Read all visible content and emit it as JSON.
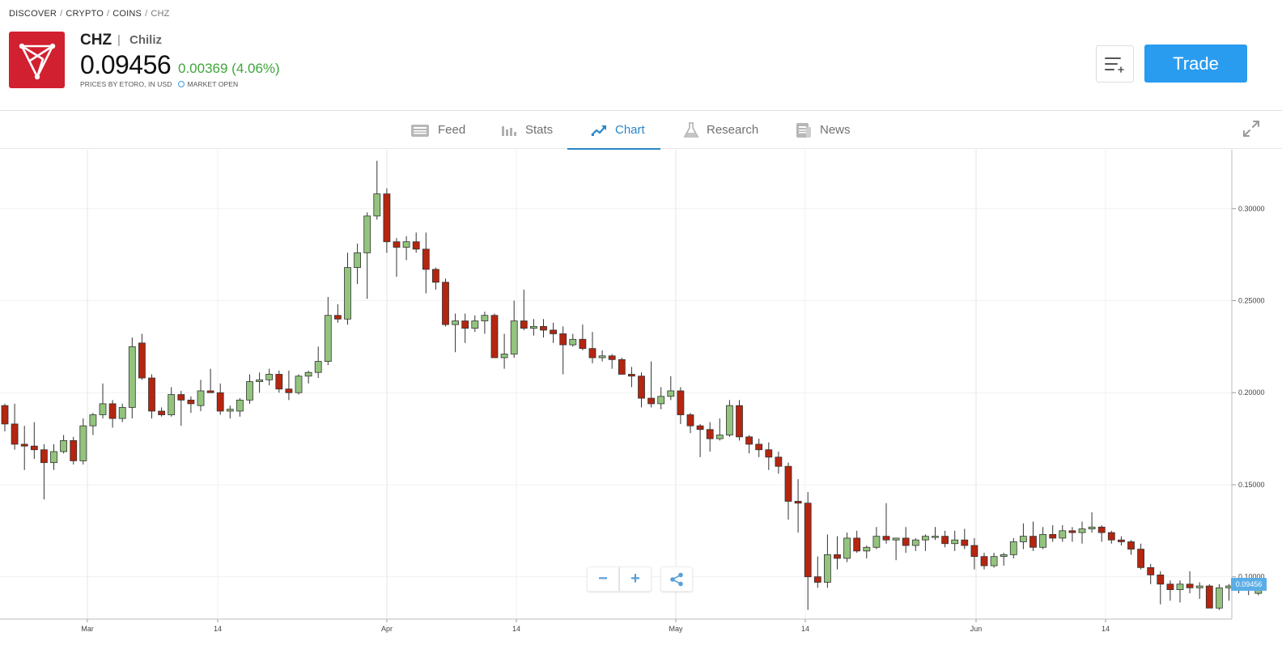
{
  "breadcrumb": {
    "items": [
      "DISCOVER",
      "CRYPTO",
      "COINS"
    ],
    "current": "CHZ",
    "separator": "/"
  },
  "instrument": {
    "symbol": "CHZ",
    "separator": "|",
    "name": "Chiliz",
    "price": "0.09456",
    "change": "0.00369 (4.06%)",
    "prices_by": "PRICES BY ETORO, IN USD",
    "market_status": "MARKET OPEN",
    "brand_color": "#d1202f",
    "change_color": "#3fa53a"
  },
  "actions": {
    "watchlist_icon": "add-to-watchlist-icon",
    "trade_label": "Trade",
    "trade_color": "#2a9cf0"
  },
  "tabs": [
    {
      "label": "Feed",
      "icon": "feed-icon",
      "active": false
    },
    {
      "label": "Stats",
      "icon": "stats-icon",
      "active": false
    },
    {
      "label": "Chart",
      "icon": "chart-icon",
      "active": true
    },
    {
      "label": "Research",
      "icon": "research-icon",
      "active": false
    },
    {
      "label": "News",
      "icon": "news-icon",
      "active": false
    }
  ],
  "chart_controls": {
    "zoom_out": "−",
    "zoom_in": "+",
    "share_icon": "share-icon",
    "expand_icon": "expand-icon"
  },
  "chart_data": {
    "type": "candlestick",
    "x_labels": [
      "Mar",
      "14",
      "Apr",
      "14",
      "May",
      "14",
      "Jun",
      "14"
    ],
    "y_ticks": [
      "0.30000",
      "0.25000",
      "0.20000",
      "0.15000",
      "0.10000"
    ],
    "ylim": [
      0.077,
      0.332
    ],
    "last_price_label": "0.09456",
    "up_color": "#93c47d",
    "down_color": "#b5250f",
    "grid": true,
    "candles": [
      [
        0.193,
        0.194,
        0.179,
        0.183
      ],
      [
        0.183,
        0.194,
        0.169,
        0.172
      ],
      [
        0.172,
        0.182,
        0.158,
        0.171
      ],
      [
        0.171,
        0.184,
        0.164,
        0.169
      ],
      [
        0.169,
        0.172,
        0.142,
        0.162
      ],
      [
        0.162,
        0.172,
        0.158,
        0.168
      ],
      [
        0.168,
        0.177,
        0.167,
        0.174
      ],
      [
        0.174,
        0.176,
        0.161,
        0.163
      ],
      [
        0.163,
        0.186,
        0.161,
        0.182
      ],
      [
        0.182,
        0.189,
        0.177,
        0.188
      ],
      [
        0.188,
        0.205,
        0.186,
        0.194
      ],
      [
        0.194,
        0.196,
        0.181,
        0.186
      ],
      [
        0.186,
        0.194,
        0.184,
        0.192
      ],
      [
        0.192,
        0.23,
        0.186,
        0.225
      ],
      [
        0.227,
        0.232,
        0.207,
        0.208
      ],
      [
        0.208,
        0.21,
        0.186,
        0.19
      ],
      [
        0.19,
        0.192,
        0.187,
        0.188
      ],
      [
        0.188,
        0.203,
        0.187,
        0.199
      ],
      [
        0.199,
        0.201,
        0.182,
        0.196
      ],
      [
        0.196,
        0.198,
        0.189,
        0.194
      ],
      [
        0.193,
        0.207,
        0.19,
        0.201
      ],
      [
        0.201,
        0.213,
        0.2,
        0.2
      ],
      [
        0.2,
        0.205,
        0.188,
        0.19
      ],
      [
        0.19,
        0.193,
        0.186,
        0.191
      ],
      [
        0.19,
        0.197,
        0.187,
        0.196
      ],
      [
        0.196,
        0.21,
        0.194,
        0.206
      ],
      [
        0.206,
        0.211,
        0.2,
        0.207
      ],
      [
        0.207,
        0.213,
        0.204,
        0.21
      ],
      [
        0.21,
        0.212,
        0.2,
        0.202
      ],
      [
        0.202,
        0.212,
        0.196,
        0.2
      ],
      [
        0.2,
        0.21,
        0.199,
        0.209
      ],
      [
        0.209,
        0.212,
        0.205,
        0.211
      ],
      [
        0.211,
        0.225,
        0.208,
        0.217
      ],
      [
        0.217,
        0.252,
        0.215,
        0.242
      ],
      [
        0.242,
        0.248,
        0.238,
        0.24
      ],
      [
        0.24,
        0.276,
        0.237,
        0.268
      ],
      [
        0.268,
        0.281,
        0.259,
        0.276
      ],
      [
        0.276,
        0.298,
        0.251,
        0.296
      ],
      [
        0.296,
        0.326,
        0.294,
        0.308
      ],
      [
        0.308,
        0.311,
        0.276,
        0.282
      ],
      [
        0.282,
        0.284,
        0.263,
        0.279
      ],
      [
        0.279,
        0.285,
        0.272,
        0.282
      ],
      [
        0.282,
        0.287,
        0.276,
        0.278
      ],
      [
        0.278,
        0.287,
        0.254,
        0.267
      ],
      [
        0.267,
        0.268,
        0.256,
        0.26
      ],
      [
        0.26,
        0.262,
        0.236,
        0.237
      ],
      [
        0.237,
        0.243,
        0.222,
        0.239
      ],
      [
        0.239,
        0.243,
        0.227,
        0.235
      ],
      [
        0.235,
        0.242,
        0.233,
        0.239
      ],
      [
        0.239,
        0.244,
        0.232,
        0.242
      ],
      [
        0.242,
        0.243,
        0.219,
        0.219
      ],
      [
        0.219,
        0.232,
        0.213,
        0.221
      ],
      [
        0.221,
        0.25,
        0.219,
        0.239
      ],
      [
        0.239,
        0.256,
        0.234,
        0.235
      ],
      [
        0.235,
        0.24,
        0.231,
        0.236
      ],
      [
        0.236,
        0.24,
        0.23,
        0.234
      ],
      [
        0.234,
        0.238,
        0.227,
        0.232
      ],
      [
        0.232,
        0.236,
        0.21,
        0.226
      ],
      [
        0.226,
        0.232,
        0.225,
        0.229
      ],
      [
        0.229,
        0.237,
        0.223,
        0.224
      ],
      [
        0.224,
        0.233,
        0.216,
        0.219
      ],
      [
        0.219,
        0.223,
        0.217,
        0.22
      ],
      [
        0.22,
        0.221,
        0.213,
        0.218
      ],
      [
        0.218,
        0.219,
        0.211,
        0.21
      ],
      [
        0.21,
        0.214,
        0.203,
        0.209
      ],
      [
        0.209,
        0.211,
        0.192,
        0.197
      ],
      [
        0.197,
        0.217,
        0.192,
        0.194
      ],
      [
        0.194,
        0.203,
        0.191,
        0.198
      ],
      [
        0.198,
        0.209,
        0.196,
        0.201
      ],
      [
        0.201,
        0.203,
        0.183,
        0.188
      ],
      [
        0.188,
        0.189,
        0.178,
        0.182
      ],
      [
        0.182,
        0.183,
        0.165,
        0.18
      ],
      [
        0.18,
        0.184,
        0.168,
        0.175
      ],
      [
        0.175,
        0.186,
        0.174,
        0.177
      ],
      [
        0.177,
        0.196,
        0.176,
        0.193
      ],
      [
        0.193,
        0.196,
        0.174,
        0.176
      ],
      [
        0.176,
        0.177,
        0.167,
        0.172
      ],
      [
        0.172,
        0.175,
        0.165,
        0.169
      ],
      [
        0.169,
        0.173,
        0.158,
        0.165
      ],
      [
        0.165,
        0.168,
        0.156,
        0.16
      ],
      [
        0.16,
        0.162,
        0.131,
        0.141
      ],
      [
        0.141,
        0.153,
        0.124,
        0.14
      ],
      [
        0.14,
        0.146,
        0.082,
        0.1
      ],
      [
        0.1,
        0.111,
        0.094,
        0.097
      ],
      [
        0.097,
        0.123,
        0.094,
        0.112
      ],
      [
        0.112,
        0.122,
        0.104,
        0.11
      ],
      [
        0.11,
        0.124,
        0.108,
        0.121
      ],
      [
        0.121,
        0.125,
        0.113,
        0.114
      ],
      [
        0.114,
        0.117,
        0.11,
        0.116
      ],
      [
        0.116,
        0.127,
        0.115,
        0.122
      ],
      [
        0.122,
        0.14,
        0.118,
        0.12
      ],
      [
        0.12,
        0.121,
        0.109,
        0.121
      ],
      [
        0.121,
        0.127,
        0.113,
        0.117
      ],
      [
        0.117,
        0.121,
        0.114,
        0.12
      ],
      [
        0.12,
        0.123,
        0.114,
        0.122
      ],
      [
        0.122,
        0.127,
        0.12,
        0.122
      ],
      [
        0.122,
        0.125,
        0.116,
        0.118
      ],
      [
        0.118,
        0.125,
        0.114,
        0.12
      ],
      [
        0.12,
        0.126,
        0.115,
        0.117
      ],
      [
        0.117,
        0.121,
        0.104,
        0.111
      ],
      [
        0.111,
        0.113,
        0.104,
        0.106
      ],
      [
        0.106,
        0.113,
        0.105,
        0.111
      ],
      [
        0.111,
        0.113,
        0.106,
        0.112
      ],
      [
        0.112,
        0.121,
        0.11,
        0.119
      ],
      [
        0.119,
        0.129,
        0.115,
        0.122
      ],
      [
        0.122,
        0.13,
        0.114,
        0.116
      ],
      [
        0.116,
        0.127,
        0.115,
        0.123
      ],
      [
        0.123,
        0.128,
        0.119,
        0.121
      ],
      [
        0.121,
        0.128,
        0.119,
        0.125
      ],
      [
        0.125,
        0.127,
        0.119,
        0.124
      ],
      [
        0.124,
        0.13,
        0.118,
        0.126
      ],
      [
        0.126,
        0.135,
        0.124,
        0.127
      ],
      [
        0.127,
        0.128,
        0.119,
        0.124
      ],
      [
        0.124,
        0.125,
        0.118,
        0.12
      ],
      [
        0.12,
        0.122,
        0.117,
        0.119
      ],
      [
        0.119,
        0.12,
        0.112,
        0.115
      ],
      [
        0.115,
        0.118,
        0.104,
        0.105
      ],
      [
        0.105,
        0.107,
        0.096,
        0.101
      ],
      [
        0.101,
        0.103,
        0.085,
        0.096
      ],
      [
        0.096,
        0.098,
        0.087,
        0.093
      ],
      [
        0.093,
        0.098,
        0.086,
        0.096
      ],
      [
        0.096,
        0.103,
        0.091,
        0.094
      ],
      [
        0.094,
        0.097,
        0.088,
        0.095
      ],
      [
        0.095,
        0.096,
        0.083,
        0.083
      ],
      [
        0.083,
        0.096,
        0.082,
        0.094
      ],
      [
        0.094,
        0.096,
        0.087,
        0.095
      ],
      [
        0.095,
        0.099,
        0.091,
        0.096
      ],
      [
        0.096,
        0.098,
        0.09,
        0.093
      ],
      [
        0.091,
        0.097,
        0.09,
        0.095
      ]
    ]
  }
}
